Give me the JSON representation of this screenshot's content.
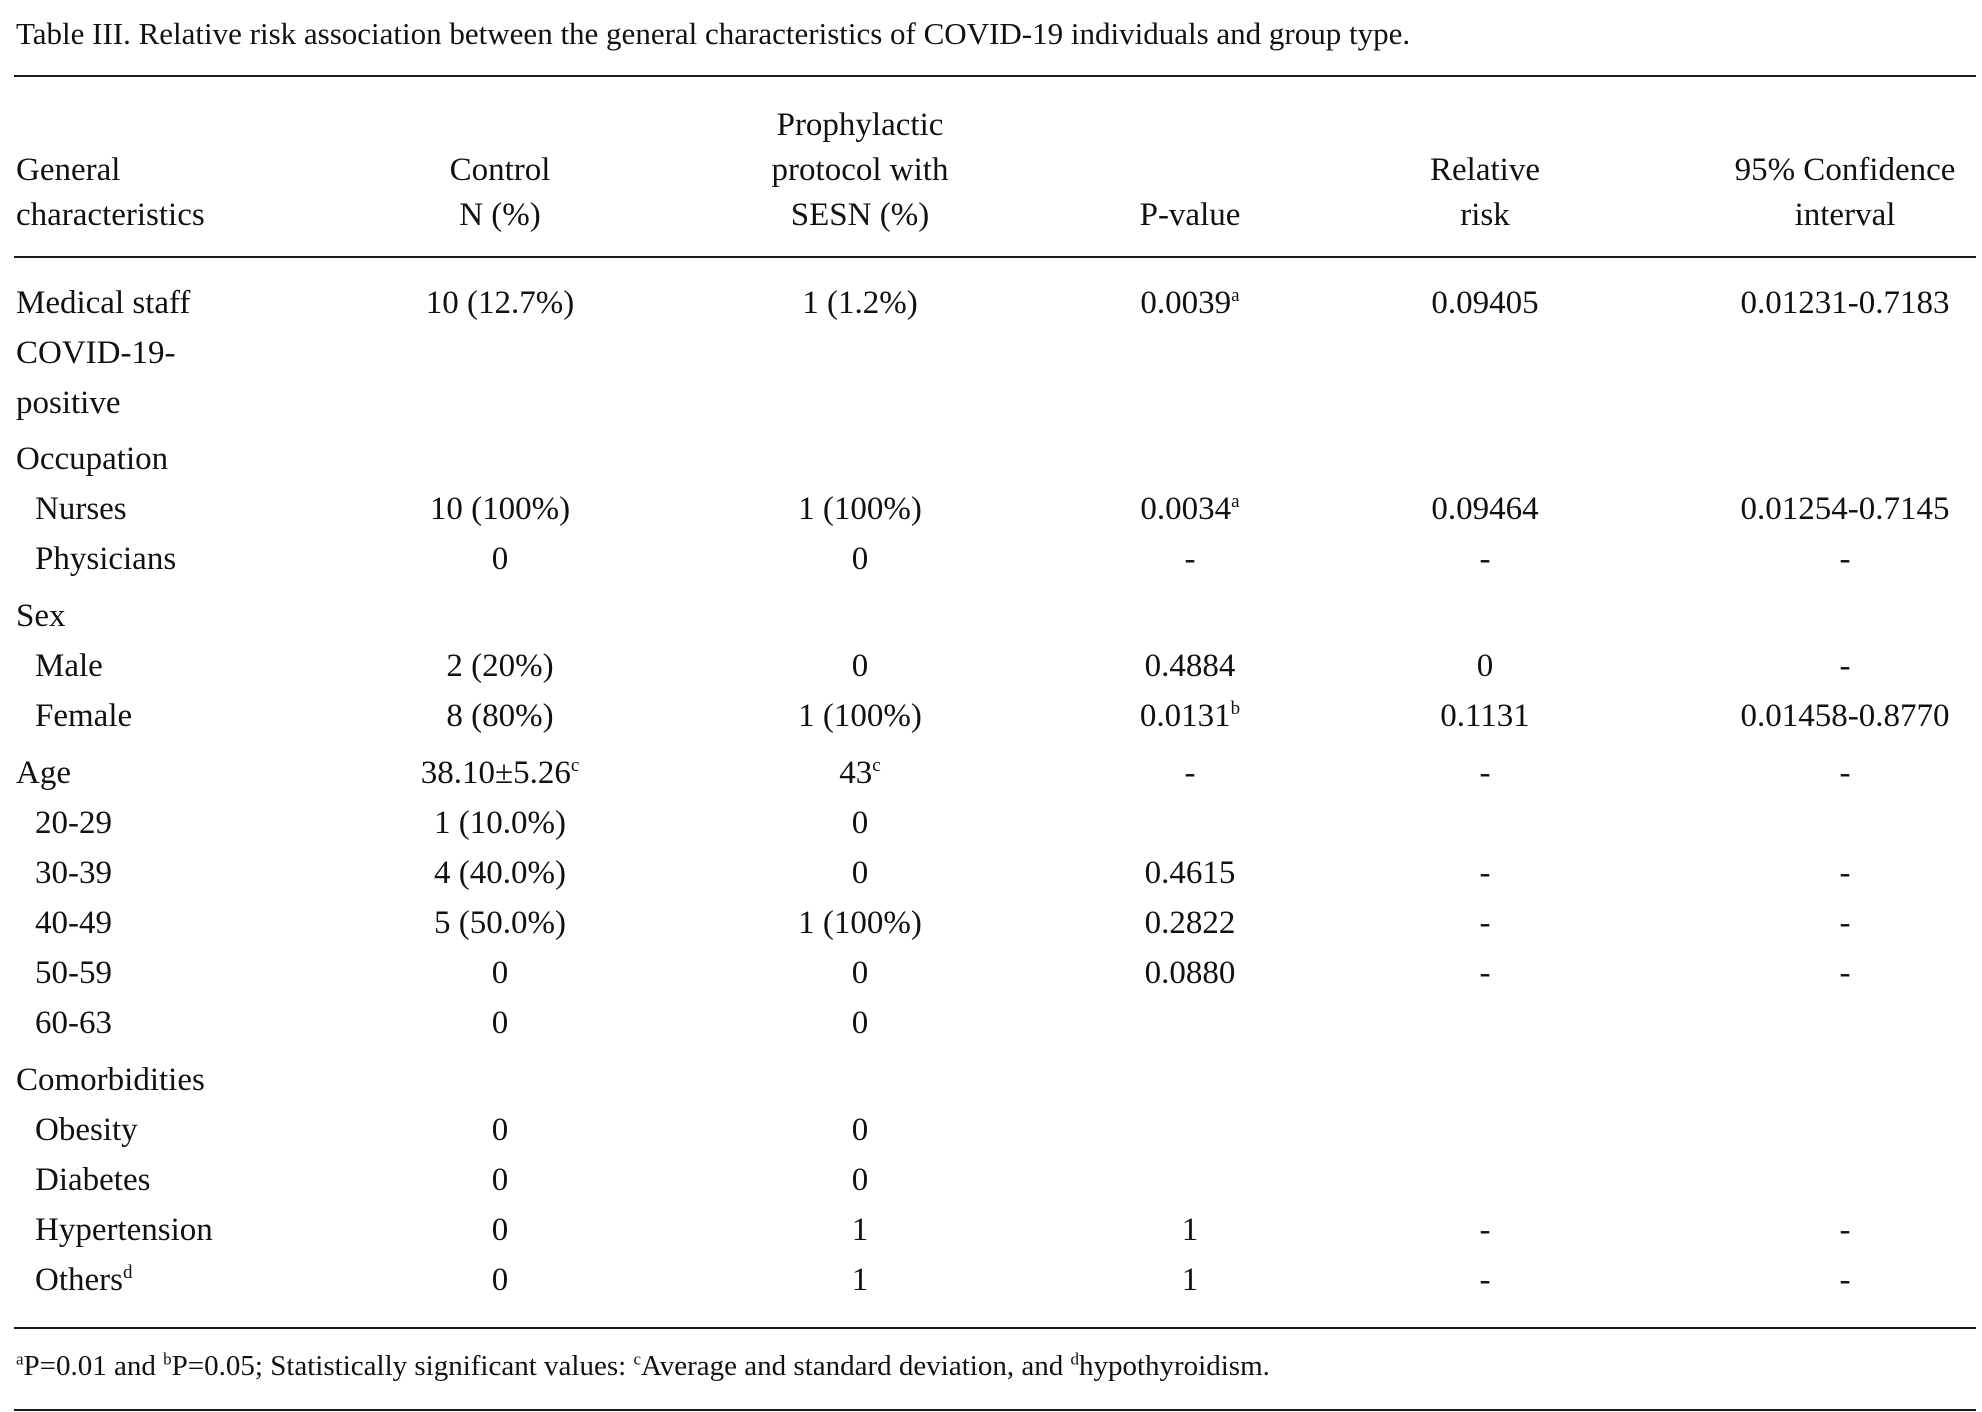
{
  "caption": "Table III. Relative risk association between the general characteristics of COVID-19 individuals and group type.",
  "headers": {
    "col1": [
      "General",
      "characteristics"
    ],
    "col2": [
      "Control",
      "N (%)"
    ],
    "col3": [
      "Prophylactic",
      "protocol with",
      "SESN (%)"
    ],
    "col4": [
      "P-value"
    ],
    "col5": [
      "Relative",
      "risk"
    ],
    "col6": [
      "95% Confidence",
      "interval"
    ]
  },
  "rows": {
    "medical_staff": {
      "label_lines": [
        "Medical staff",
        "COVID-19-",
        "positive"
      ],
      "control": "10 (12.7%)",
      "sesn": "1 (1.2%)",
      "p_value": "0.0039",
      "p_sup": "a",
      "rr": "0.09405",
      "ci": "0.01231-0.7183"
    },
    "occupation": {
      "label": "Occupation"
    },
    "nurses": {
      "label": "Nurses",
      "control": "10 (100%)",
      "sesn": "1 (100%)",
      "p_value": "0.0034",
      "p_sup": "a",
      "rr": "0.09464",
      "ci": "0.01254-0.7145"
    },
    "physicians": {
      "label": "Physicians",
      "control": "0",
      "sesn": "0",
      "p_value": "-",
      "rr": "-",
      "ci": "-"
    },
    "sex": {
      "label": "Sex"
    },
    "male": {
      "label": "Male",
      "control": "2 (20%)",
      "sesn": "0",
      "p_value": "0.4884",
      "rr": "0",
      "ci": "-"
    },
    "female": {
      "label": "Female",
      "control": "8 (80%)",
      "sesn": "1 (100%)",
      "p_value": "0.0131",
      "p_sup": "b",
      "rr": "0.1131",
      "ci": "0.01458-0.8770"
    },
    "age": {
      "label": "Age",
      "control": "38.10±5.26",
      "control_sup": "c",
      "sesn": "43",
      "sesn_sup": "c",
      "p_value": "-",
      "rr": "-",
      "ci": "-"
    },
    "age_20_29": {
      "label": "20-29",
      "control": "1 (10.0%)",
      "sesn": "0"
    },
    "age_30_39": {
      "label": "30-39",
      "control": "4 (40.0%)",
      "sesn": "0",
      "p_value": "0.4615",
      "rr": "-",
      "ci": "-"
    },
    "age_40_49": {
      "label": "40-49",
      "control": "5 (50.0%)",
      "sesn": "1 (100%)",
      "p_value": "0.2822",
      "rr": "-",
      "ci": "-"
    },
    "age_50_59": {
      "label": "50-59",
      "control": "0",
      "sesn": "0",
      "p_value": "0.0880",
      "rr": "-",
      "ci": "-"
    },
    "age_60_63": {
      "label": "60-63",
      "control": "0",
      "sesn": "0"
    },
    "comorbidities": {
      "label": "Comorbidities"
    },
    "obesity": {
      "label": "Obesity",
      "control": "0",
      "sesn": "0"
    },
    "diabetes": {
      "label": "Diabetes",
      "control": "0",
      "sesn": "0"
    },
    "hypertension": {
      "label": "Hypertension",
      "control": "0",
      "sesn": "1",
      "p_value": "1",
      "rr": "-",
      "ci": "-"
    },
    "others": {
      "label": "Others",
      "label_sup": "d",
      "control": "0",
      "sesn": "1",
      "p_value": "1",
      "rr": "-",
      "ci": "-"
    }
  },
  "footnote": {
    "sup_a": "a",
    "text_a": "P=0.01 and ",
    "sup_b": "b",
    "text_b": "P=0.05; Statistically significant values: ",
    "sup_c": "c",
    "text_c": "Average and standard deviation, and ",
    "sup_d": "d",
    "text_d": "hypothyroidism."
  }
}
